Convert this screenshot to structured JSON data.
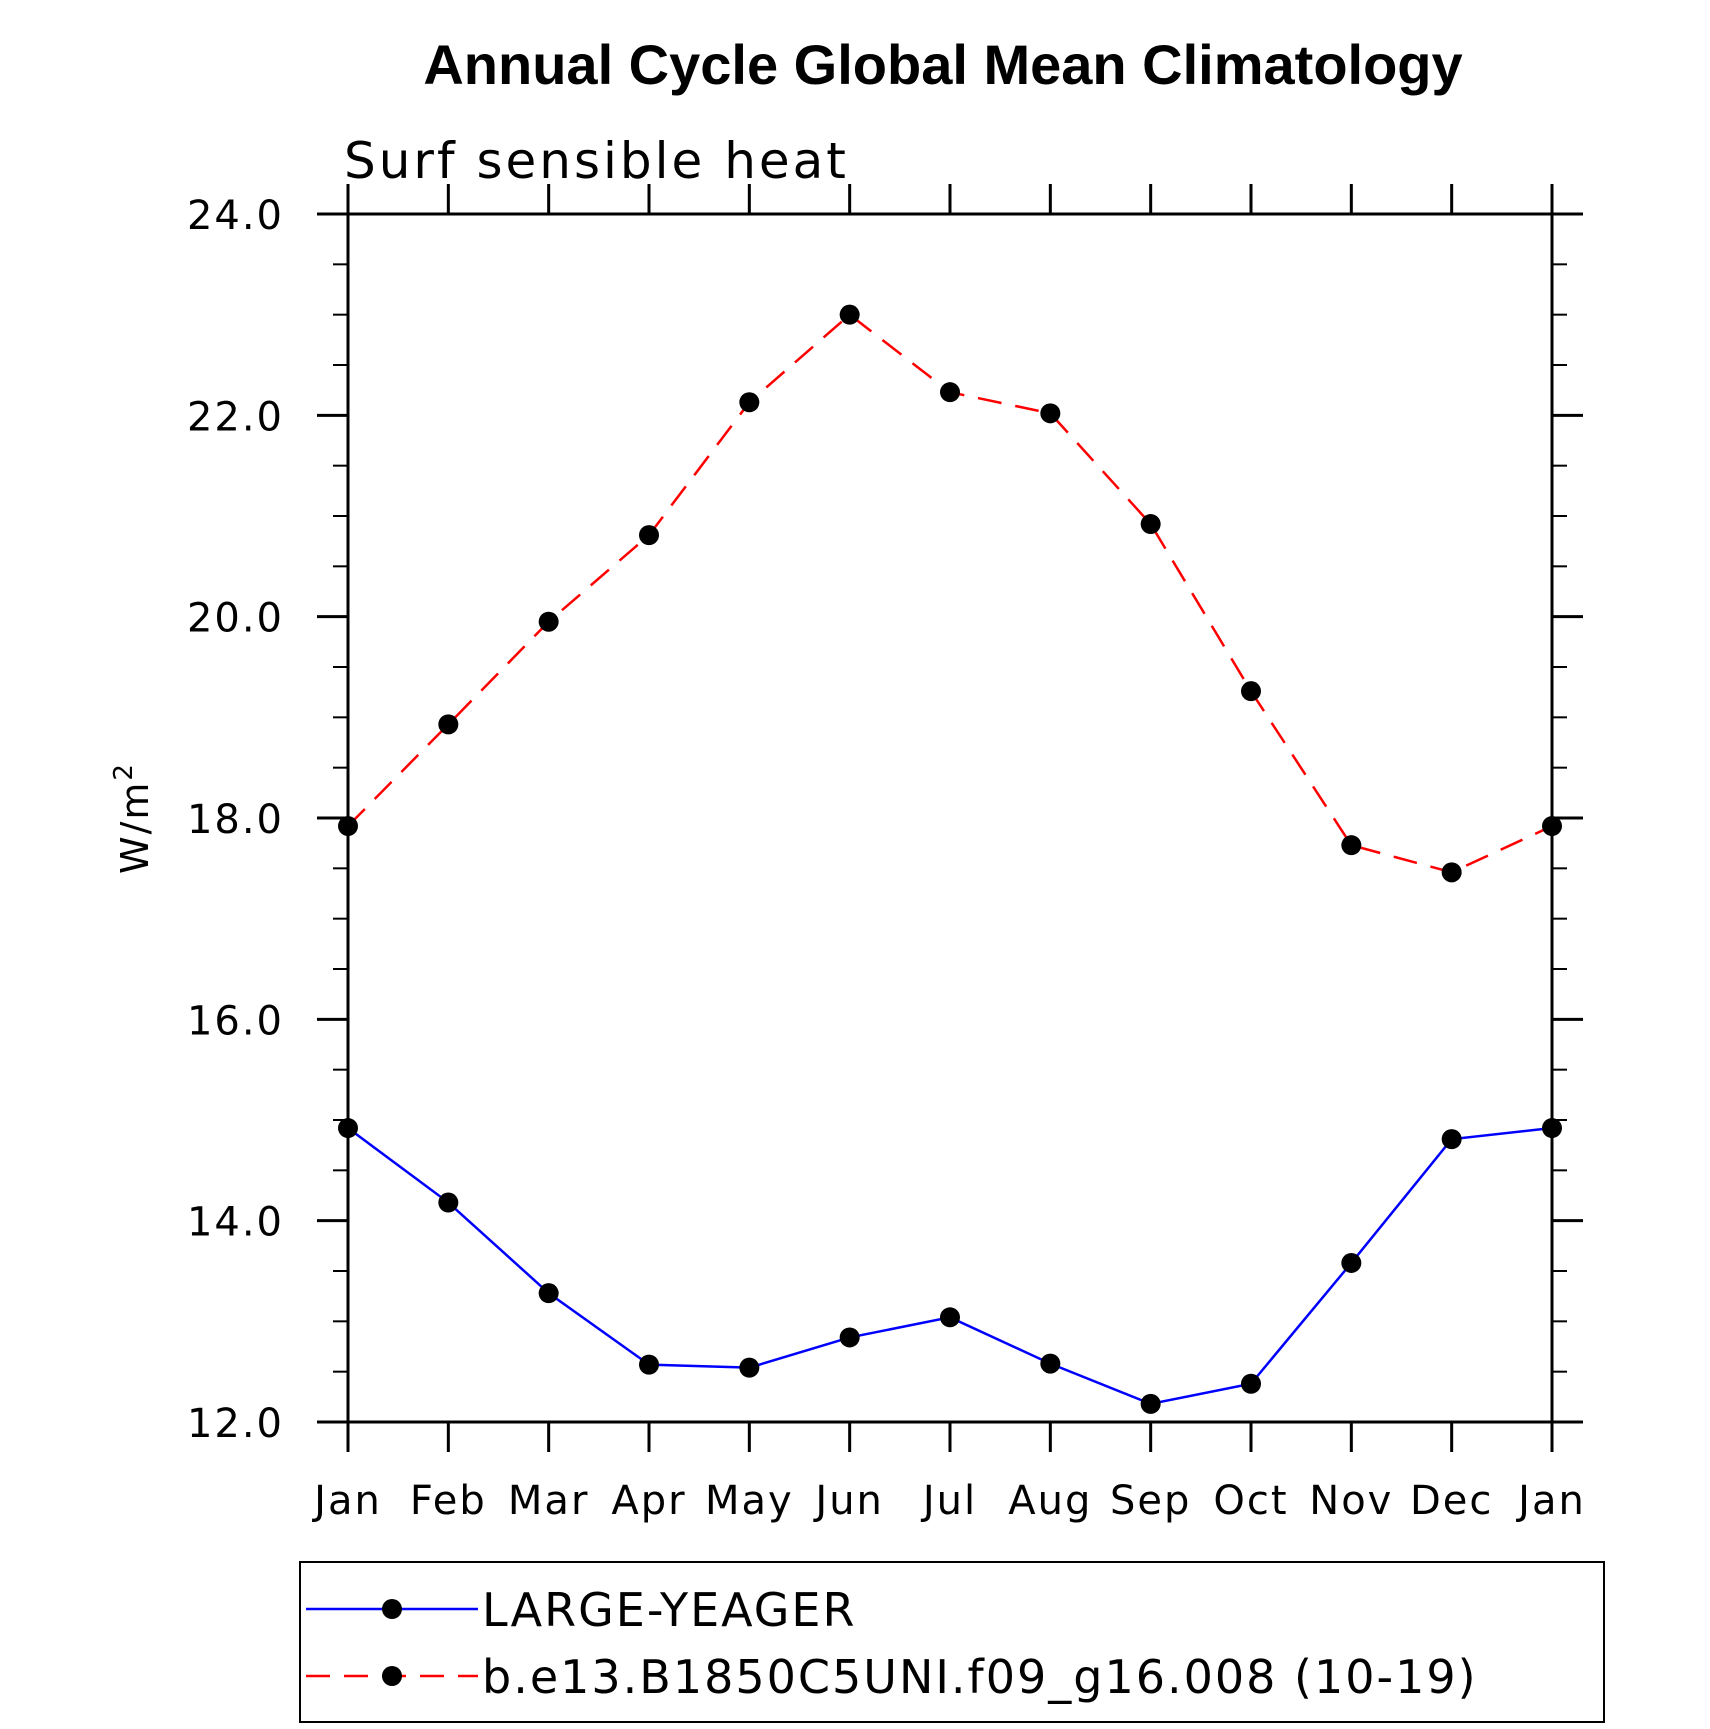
{
  "chart_data": {
    "type": "line",
    "title": "Annual Cycle Global Mean Climatology",
    "subtitle": "Surf sensible heat",
    "ylabel": "W/m",
    "ylabel_superscript": "2",
    "ylim": [
      12.0,
      24.0
    ],
    "yticks": [
      "12.0",
      "14.0",
      "16.0",
      "18.0",
      "20.0",
      "22.0",
      "24.0"
    ],
    "categories": [
      "Jan",
      "Feb",
      "Mar",
      "Apr",
      "May",
      "Jun",
      "Jul",
      "Aug",
      "Sep",
      "Oct",
      "Nov",
      "Dec",
      "Jan"
    ],
    "grid": false,
    "legend_position": "bottom",
    "series": [
      {
        "name": "LARGE-YEAGER",
        "color": "#0000ff",
        "line_style": "solid",
        "marker": "filled-circle",
        "values": [
          14.92,
          14.18,
          13.28,
          12.57,
          12.54,
          12.84,
          13.04,
          12.58,
          12.18,
          12.38,
          13.58,
          14.81,
          14.92
        ]
      },
      {
        "name": "b.e13.B1850C5UNI.f09_g16.008 (10-19)",
        "color": "#ff0000",
        "line_style": "dashed",
        "marker": "filled-circle",
        "values": [
          17.92,
          18.93,
          19.95,
          20.81,
          22.13,
          23.0,
          22.23,
          22.02,
          20.92,
          19.26,
          17.73,
          17.46,
          17.92
        ]
      }
    ]
  }
}
